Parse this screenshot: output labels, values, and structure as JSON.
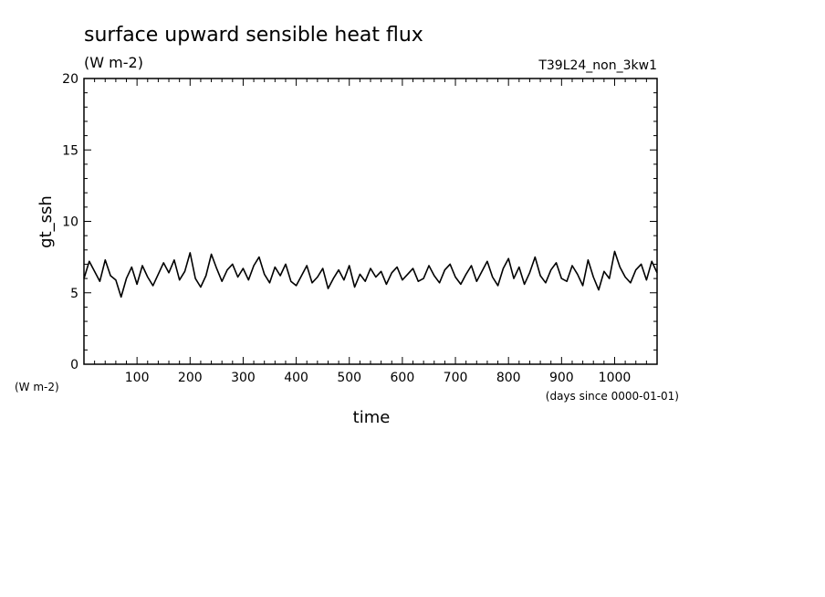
{
  "chart_data": {
    "type": "line",
    "title": "surface upward sensible heat flux",
    "units": "(W m-2)",
    "case_label": "T39L24_non_3kw1",
    "xlabel": "time",
    "xunits": "(days since 0000-01-01)",
    "ylabel": "gt_ssh",
    "yunits": "(W m-2)",
    "xlim": [
      0,
      1080
    ],
    "ylim": [
      0,
      20
    ],
    "x_ticks": [
      100,
      200,
      300,
      400,
      500,
      600,
      700,
      800,
      900,
      1000
    ],
    "y_ticks": [
      0,
      5,
      10,
      15,
      20
    ],
    "grid": false,
    "series": [
      {
        "x": [
          0,
          10,
          20,
          30,
          40,
          50,
          60,
          70,
          80,
          90,
          100,
          110,
          120,
          130,
          140,
          150,
          160,
          170,
          180,
          190,
          200,
          210,
          220,
          230,
          240,
          250,
          260,
          270,
          280,
          290,
          300,
          310,
          320,
          330,
          340,
          350,
          360,
          370,
          380,
          390,
          400,
          410,
          420,
          430,
          440,
          450,
          460,
          470,
          480,
          490,
          500,
          510,
          520,
          530,
          540,
          550,
          560,
          570,
          580,
          590,
          600,
          610,
          620,
          630,
          640,
          650,
          660,
          670,
          680,
          690,
          700,
          710,
          720,
          730,
          740,
          750,
          760,
          770,
          780,
          790,
          800,
          810,
          820,
          830,
          840,
          850,
          860,
          870,
          880,
          890,
          900,
          910,
          920,
          930,
          940,
          950,
          960,
          970,
          980,
          990,
          1000,
          1010,
          1020,
          1030,
          1040,
          1050,
          1060,
          1070,
          1080
        ],
        "y": [
          6.0,
          7.2,
          6.5,
          5.8,
          7.3,
          6.2,
          5.9,
          4.7,
          6.0,
          6.8,
          5.6,
          6.9,
          6.1,
          5.5,
          6.3,
          7.1,
          6.4,
          7.3,
          5.9,
          6.5,
          7.8,
          6.0,
          5.4,
          6.2,
          7.7,
          6.7,
          5.8,
          6.6,
          7.0,
          6.1,
          6.7,
          5.9,
          6.9,
          7.5,
          6.3,
          5.7,
          6.8,
          6.2,
          7.0,
          5.8,
          5.5,
          6.2,
          6.9,
          5.7,
          6.1,
          6.7,
          5.3,
          6.0,
          6.6,
          5.9,
          6.9,
          5.4,
          6.3,
          5.8,
          6.7,
          6.1,
          6.5,
          5.6,
          6.4,
          6.8,
          5.9,
          6.3,
          6.7,
          5.8,
          6.0,
          6.9,
          6.2,
          5.7,
          6.6,
          7.0,
          6.1,
          5.6,
          6.3,
          6.9,
          5.8,
          6.5,
          7.2,
          6.1,
          5.5,
          6.7,
          7.4,
          6.0,
          6.8,
          5.6,
          6.4,
          7.5,
          6.2,
          5.7,
          6.6,
          7.1,
          6.0,
          5.8,
          6.9,
          6.3,
          5.5,
          7.3,
          6.1,
          5.2,
          6.5,
          6.0,
          7.9,
          6.8,
          6.1,
          5.7,
          6.6,
          7.0,
          5.9,
          7.2,
          6.4
        ]
      }
    ]
  }
}
